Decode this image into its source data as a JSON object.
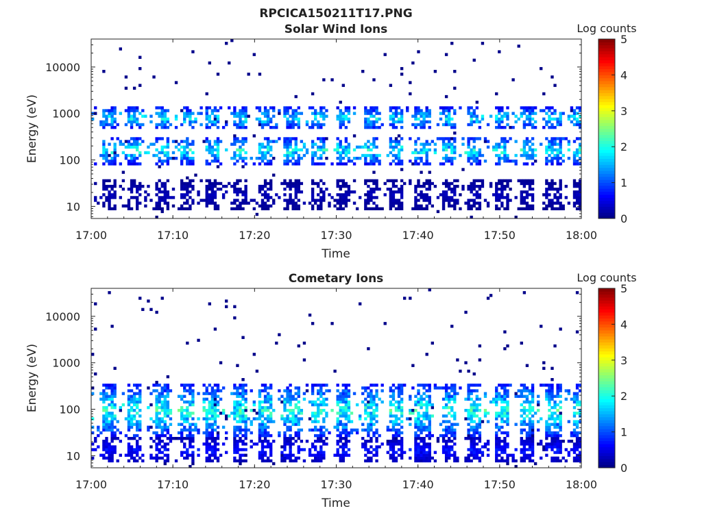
{
  "figure_title": "RPCICA150211T17.PNG",
  "colorbar_label": "Log counts",
  "colorbar_ticks": [
    "0",
    "1",
    "2",
    "3",
    "4",
    "5"
  ],
  "chart_data": [
    {
      "type": "heatmap",
      "title": "Solar Wind Ions",
      "xlabel": "Time",
      "ylabel": "Energy (eV)",
      "x_ticks": [
        "17:00",
        "17:10",
        "17:20",
        "17:30",
        "17:40",
        "17:50",
        "18:00"
      ],
      "x_range": [
        "17:00",
        "18:00"
      ],
      "y_ticks": [
        "10",
        "100",
        "1000",
        "10000"
      ],
      "y_scale": "log",
      "y_range": [
        5.5,
        40000
      ],
      "color_range": [
        0,
        5
      ],
      "colormap": "jet",
      "sweep_period_min": 3.2,
      "bands": [
        {
          "energy_range": [
            80,
            320
          ],
          "peak_log_counts": 2.2
        },
        {
          "energy_range": [
            450,
            1400
          ],
          "peak_log_counts": 2.0
        },
        {
          "energy_range": [
            8,
            40
          ],
          "peak_log_counts": 0.3
        }
      ]
    },
    {
      "type": "heatmap",
      "title": "Cometary Ions",
      "xlabel": "Time",
      "ylabel": "Energy (eV)",
      "x_ticks": [
        "17:00",
        "17:10",
        "17:20",
        "17:30",
        "17:40",
        "17:50",
        "18:00"
      ],
      "x_range": [
        "17:00",
        "18:00"
      ],
      "y_ticks": [
        "10",
        "100",
        "1000",
        "10000"
      ],
      "y_scale": "log",
      "y_range": [
        5.5,
        40000
      ],
      "color_range": [
        0,
        5
      ],
      "colormap": "jet",
      "sweep_period_min": 3.2,
      "bands": [
        {
          "energy_range": [
            25,
            350
          ],
          "peak_log_counts": 2.3
        },
        {
          "energy_range": [
            7,
            25
          ],
          "peak_log_counts": 0.8
        }
      ]
    }
  ]
}
